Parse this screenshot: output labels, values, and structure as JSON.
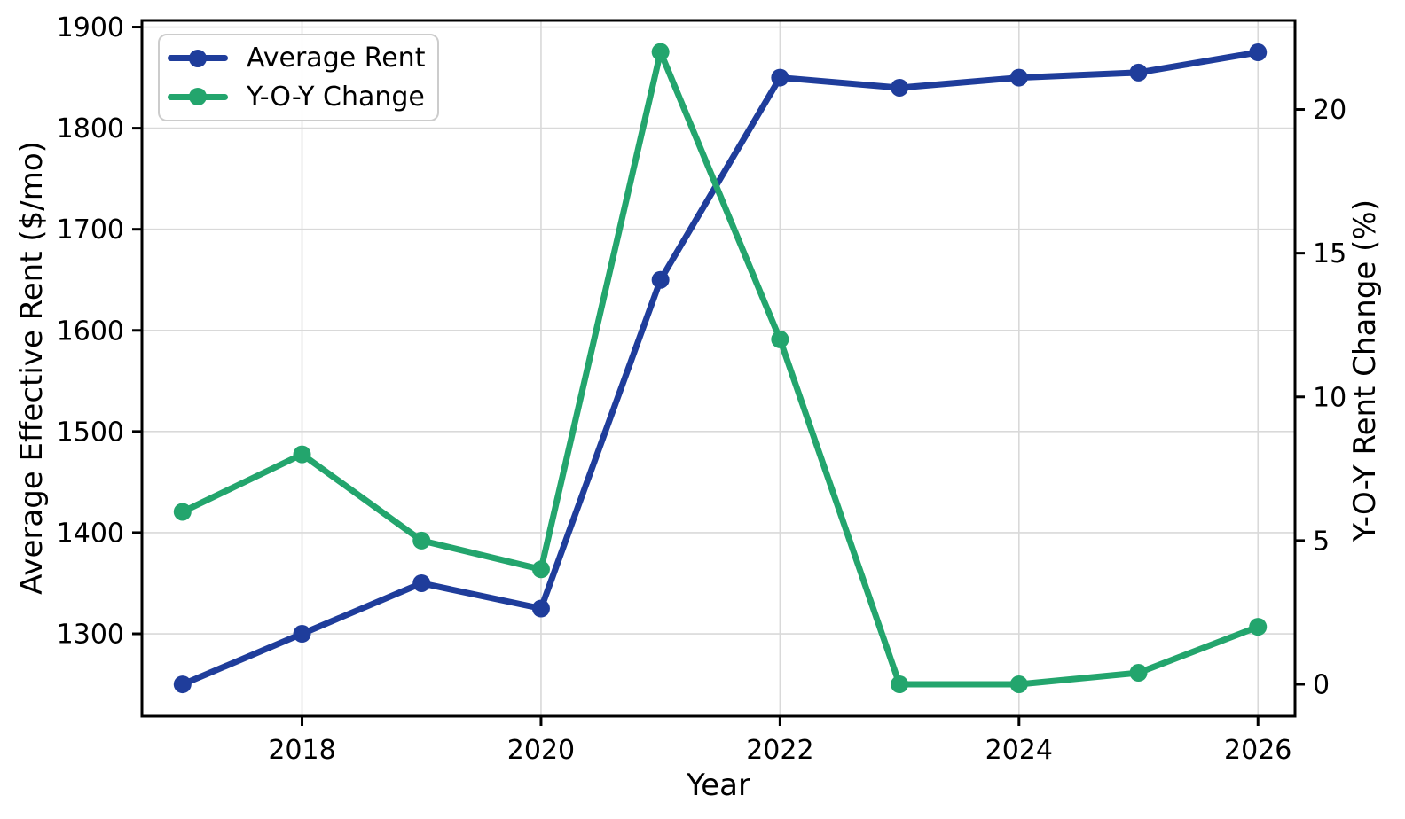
{
  "figure": {
    "background": "#ffffff"
  },
  "chart_data": {
    "type": "line",
    "title": "",
    "xlabel": "Year",
    "x": [
      2017,
      2018,
      2019,
      2020,
      2021,
      2022,
      2023,
      2024,
      2025,
      2026
    ],
    "x_ticks": [
      2018,
      2020,
      2022,
      2024,
      2026
    ],
    "xlim": [
      2016.66,
      2026.31
    ],
    "grid": true,
    "grid_color": "#d9d9d9",
    "spine_color": "#000000",
    "tick_label_color": "#000000",
    "legend": {
      "position": "upper-left"
    },
    "series": [
      {
        "name": "Average Rent",
        "axis": "left",
        "color": "#1f3d9b",
        "marker": "circle",
        "values": [
          1250,
          1300,
          1350,
          1325,
          1650,
          1850,
          1840,
          1850,
          1855,
          1875
        ]
      },
      {
        "name": "Y-O-Y Change",
        "axis": "right",
        "color": "#23a56d",
        "marker": "circle",
        "values": [
          6,
          8,
          5,
          4,
          22,
          12,
          0,
          0,
          0.4,
          2
        ]
      }
    ],
    "left_axis": {
      "label": "Average Effective Rent ($/mo)",
      "ticks": [
        1300,
        1400,
        1500,
        1600,
        1700,
        1800,
        1900
      ],
      "range": [
        1218.5,
        1906.6
      ]
    },
    "right_axis": {
      "label": "Y-O-Y Rent Change (%)",
      "ticks": [
        0,
        5,
        10,
        15,
        20
      ],
      "range": [
        -1.11,
        23.1
      ]
    }
  }
}
